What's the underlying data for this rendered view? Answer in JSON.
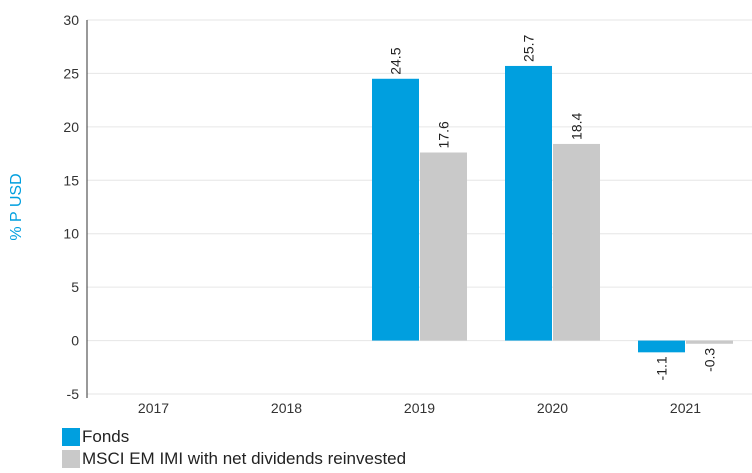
{
  "chart_data": {
    "type": "bar",
    "categories": [
      "2017",
      "2018",
      "2019",
      "2020",
      "2021"
    ],
    "series": [
      {
        "name": "Fonds",
        "color": "#009fdf",
        "values": [
          null,
          null,
          24.5,
          25.7,
          -1.1
        ],
        "labels": [
          null,
          null,
          "24.5",
          "25.7",
          "-1.1"
        ]
      },
      {
        "name": "MSCI EM IMI with net dividends reinvested",
        "color": "#c9c9c9",
        "values": [
          null,
          null,
          17.6,
          18.4,
          -0.3
        ],
        "labels": [
          null,
          null,
          "17.6",
          "18.4",
          "-0.3"
        ]
      }
    ],
    "ylabel": "% P USD",
    "ylim": [
      -5,
      30
    ],
    "yticks": [
      -5,
      0,
      5,
      10,
      15,
      20,
      25,
      30
    ],
    "grid": true,
    "legend": "bottom-left",
    "colors": {
      "ylabel": "#009fdf",
      "tick": "#333333",
      "grid": "#e6e6e6",
      "axis": "#333333"
    }
  }
}
